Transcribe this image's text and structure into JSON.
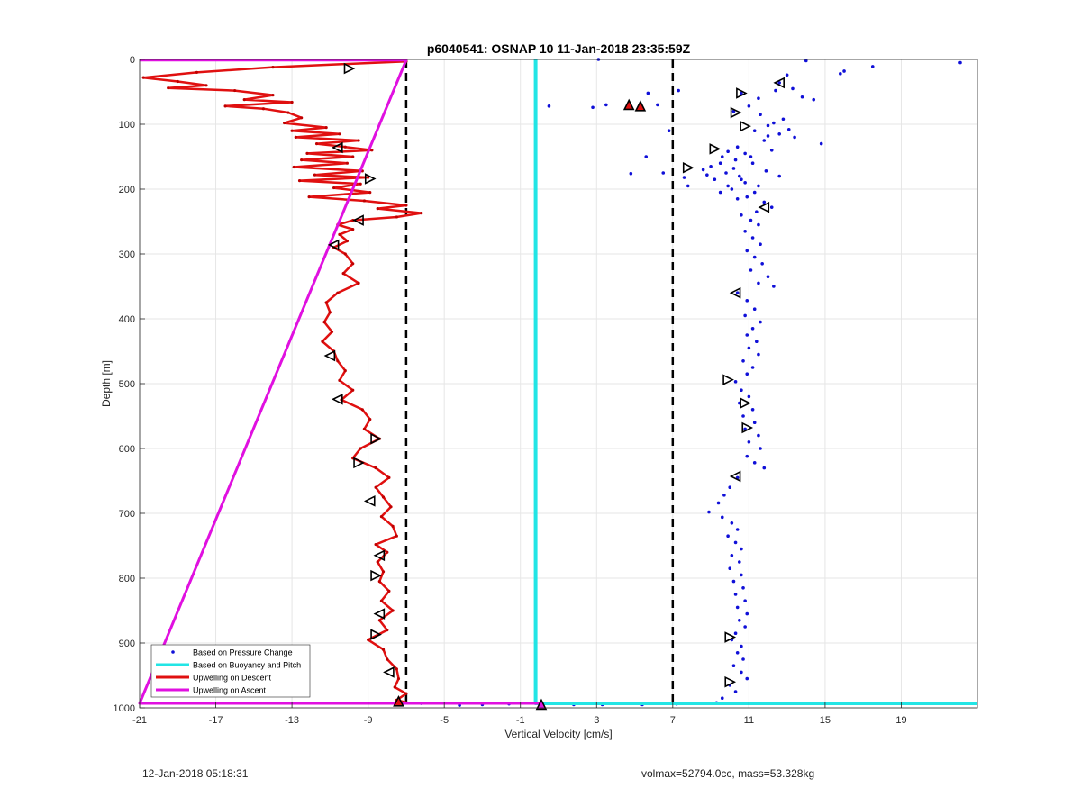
{
  "chart_data": {
    "type": "scatter",
    "title": "p6040541: OSNAP 10 11-Jan-2018 23:35:59Z",
    "xlabel": "Vertical Velocity [cm/s]",
    "ylabel": "Depth [m]",
    "xlim": [
      -21,
      23
    ],
    "ylim": [
      1000,
      0
    ],
    "y_reversed": true,
    "grid": true,
    "x_ticks": [
      "-21",
      "-17",
      "-13",
      "-9",
      "-5",
      "-1",
      "3",
      "7",
      "11",
      "15",
      "19"
    ],
    "y_ticks": [
      "0",
      "100",
      "200",
      "300",
      "400",
      "500",
      "600",
      "700",
      "800",
      "900",
      "1000"
    ],
    "legend_position": "bottom-left",
    "reference_lines": [
      {
        "x": -7,
        "style": "dashed",
        "color": "#000000"
      },
      {
        "x": 7,
        "style": "dashed",
        "color": "#000000"
      }
    ],
    "series": [
      {
        "name": "Based on Pressure Change",
        "kind": "points",
        "color": "#1010d8",
        "points": [
          [
            22.1,
            5
          ],
          [
            17.5,
            11
          ],
          [
            16.0,
            18
          ],
          [
            15.8,
            22
          ],
          [
            14.0,
            2
          ],
          [
            13.0,
            24
          ],
          [
            12.6,
            36
          ],
          [
            12.4,
            48
          ],
          [
            13.3,
            45
          ],
          [
            11.5,
            60
          ],
          [
            10.6,
            52
          ],
          [
            13.8,
            58
          ],
          [
            14.4,
            62
          ],
          [
            11.0,
            72
          ],
          [
            10.2,
            80
          ],
          [
            11.6,
            85
          ],
          [
            12.8,
            92
          ],
          [
            12.0,
            102
          ],
          [
            11.3,
            110
          ],
          [
            12.6,
            115
          ],
          [
            13.4,
            120
          ],
          [
            11.8,
            125
          ],
          [
            14.8,
            130
          ],
          [
            12.2,
            140
          ],
          [
            10.8,
            145
          ],
          [
            9.6,
            150
          ],
          [
            10.3,
            155
          ],
          [
            11.2,
            160
          ],
          [
            9.0,
            165
          ],
          [
            8.6,
            170
          ],
          [
            9.8,
            175
          ],
          [
            10.5,
            180
          ],
          [
            7.6,
            182
          ],
          [
            9.2,
            185
          ],
          [
            10.8,
            190
          ],
          [
            11.5,
            195
          ],
          [
            10.1,
            200
          ],
          [
            9.5,
            205
          ],
          [
            10.9,
            212
          ],
          [
            11.8,
            220
          ],
          [
            12.2,
            228
          ],
          [
            11.4,
            235
          ],
          [
            10.6,
            240
          ],
          [
            11.1,
            248
          ],
          [
            11.5,
            255
          ],
          [
            10.8,
            265
          ],
          [
            11.2,
            275
          ],
          [
            11.6,
            285
          ],
          [
            10.9,
            295
          ],
          [
            11.3,
            305
          ],
          [
            11.7,
            315
          ],
          [
            11.1,
            325
          ],
          [
            12.0,
            335
          ],
          [
            11.5,
            345
          ],
          [
            12.3,
            350
          ],
          [
            10.4,
            360
          ],
          [
            10.9,
            372
          ],
          [
            11.3,
            385
          ],
          [
            10.8,
            395
          ],
          [
            11.6,
            405
          ],
          [
            11.2,
            415
          ],
          [
            10.9,
            425
          ],
          [
            11.4,
            435
          ],
          [
            11.0,
            445
          ],
          [
            11.5,
            455
          ],
          [
            10.7,
            465
          ],
          [
            11.2,
            475
          ],
          [
            10.9,
            485
          ],
          [
            10.3,
            497
          ],
          [
            10.6,
            510
          ],
          [
            11.0,
            520
          ],
          [
            10.5,
            530
          ],
          [
            11.2,
            540
          ],
          [
            10.7,
            550
          ],
          [
            11.3,
            560
          ],
          [
            10.8,
            570
          ],
          [
            11.5,
            580
          ],
          [
            11.0,
            590
          ],
          [
            11.6,
            600
          ],
          [
            10.9,
            612
          ],
          [
            11.3,
            622
          ],
          [
            11.8,
            630
          ],
          [
            10.4,
            645
          ],
          [
            10.0,
            660
          ],
          [
            9.7,
            672
          ],
          [
            9.4,
            684
          ],
          [
            8.9,
            698
          ],
          [
            9.6,
            706
          ],
          [
            10.1,
            715
          ],
          [
            10.4,
            725
          ],
          [
            9.9,
            735
          ],
          [
            10.3,
            745
          ],
          [
            10.6,
            755
          ],
          [
            10.1,
            765
          ],
          [
            10.5,
            775
          ],
          [
            10.0,
            785
          ],
          [
            10.6,
            795
          ],
          [
            10.2,
            805
          ],
          [
            10.7,
            815
          ],
          [
            10.3,
            825
          ],
          [
            10.8,
            835
          ],
          [
            10.4,
            845
          ],
          [
            10.9,
            855
          ],
          [
            10.5,
            865
          ],
          [
            10.8,
            875
          ],
          [
            10.3,
            885
          ],
          [
            10.1,
            895
          ],
          [
            10.6,
            905
          ],
          [
            10.4,
            915
          ],
          [
            10.7,
            925
          ],
          [
            10.2,
            935
          ],
          [
            10.6,
            945
          ],
          [
            10.9,
            955
          ],
          [
            10.0,
            965
          ],
          [
            10.3,
            975
          ],
          [
            9.6,
            985
          ],
          [
            9.3,
            992
          ],
          [
            0.5,
            72
          ],
          [
            2.8,
            74
          ],
          [
            3.5,
            70
          ],
          [
            5.4,
            75
          ],
          [
            6.2,
            70
          ],
          [
            5.7,
            52
          ],
          [
            7.3,
            48
          ],
          [
            6.8,
            110
          ],
          [
            5.6,
            150
          ],
          [
            4.8,
            176
          ],
          [
            6.5,
            175
          ],
          [
            7.8,
            195
          ],
          [
            3.1,
            0
          ],
          [
            1.8,
            995
          ],
          [
            3.3,
            995
          ],
          [
            5.4,
            995
          ],
          [
            7.2,
            994
          ],
          [
            -4.2,
            996
          ],
          [
            -3.0,
            995
          ],
          [
            -1.6,
            994
          ],
          [
            -6.2,
            993
          ],
          [
            10.4,
            135
          ],
          [
            9.9,
            142
          ],
          [
            11.1,
            150
          ],
          [
            12.0,
            118
          ],
          [
            9.5,
            160
          ],
          [
            10.2,
            168
          ],
          [
            8.8,
            178
          ],
          [
            10.6,
            185
          ],
          [
            9.9,
            195
          ],
          [
            11.3,
            205
          ],
          [
            10.4,
            215
          ],
          [
            12.6,
            180
          ],
          [
            11.9,
            172
          ],
          [
            13.1,
            108
          ],
          [
            12.3,
            98
          ]
        ]
      },
      {
        "name": "Based on Buoyancy and Pitch",
        "kind": "line",
        "color": "#22e5e5",
        "points": [
          [
            -0.2,
            0
          ],
          [
            -0.2,
            993
          ],
          [
            23,
            993
          ]
        ]
      },
      {
        "name": "Upwelling on Descent",
        "kind": "line",
        "color": "#e01010",
        "points": [
          [
            -7,
            3
          ],
          [
            -14,
            12
          ],
          [
            -18,
            20
          ],
          [
            -20.8,
            28
          ],
          [
            -19,
            34
          ],
          [
            -17.5,
            40
          ],
          [
            -19.5,
            44
          ],
          [
            -16,
            48
          ],
          [
            -14,
            55
          ],
          [
            -15.5,
            62
          ],
          [
            -13,
            66
          ],
          [
            -16.5,
            72
          ],
          [
            -14.5,
            76
          ],
          [
            -13.2,
            82
          ],
          [
            -12.5,
            90
          ],
          [
            -13.4,
            98
          ],
          [
            -11.2,
            105
          ],
          [
            -13,
            110
          ],
          [
            -10.5,
            115
          ],
          [
            -12.8,
            120
          ],
          [
            -9.5,
            125
          ],
          [
            -11.7,
            130
          ],
          [
            -10.2,
            135
          ],
          [
            -8.8,
            140
          ],
          [
            -12.2,
            145
          ],
          [
            -9.8,
            150
          ],
          [
            -12.5,
            155
          ],
          [
            -10.1,
            160
          ],
          [
            -12.9,
            166
          ],
          [
            -9.3,
            172
          ],
          [
            -11.8,
            178
          ],
          [
            -9.0,
            182
          ],
          [
            -12.6,
            187
          ],
          [
            -9.4,
            192
          ],
          [
            -10.8,
            198
          ],
          [
            -8.9,
            205
          ],
          [
            -12.1,
            212
          ],
          [
            -9.2,
            218
          ],
          [
            -7.0,
            225
          ],
          [
            -8.5,
            230
          ],
          [
            -6.2,
            237
          ],
          [
            -7.5,
            243
          ],
          [
            -9.8,
            248
          ],
          [
            -10.6,
            255
          ],
          [
            -9.8,
            262
          ],
          [
            -10.5,
            270
          ],
          [
            -10.1,
            280
          ],
          [
            -10.8,
            290
          ],
          [
            -10.2,
            300
          ],
          [
            -9.8,
            315
          ],
          [
            -10.3,
            330
          ],
          [
            -9.5,
            345
          ],
          [
            -10.6,
            360
          ],
          [
            -11.2,
            375
          ],
          [
            -11.0,
            390
          ],
          [
            -11.3,
            405
          ],
          [
            -10.9,
            420
          ],
          [
            -11.4,
            435
          ],
          [
            -10.8,
            450
          ],
          [
            -10.6,
            465
          ],
          [
            -10.2,
            480
          ],
          [
            -10.5,
            495
          ],
          [
            -9.8,
            510
          ],
          [
            -10.4,
            525
          ],
          [
            -9.3,
            540
          ],
          [
            -8.9,
            555
          ],
          [
            -9.2,
            570
          ],
          [
            -8.4,
            585
          ],
          [
            -9.4,
            600
          ],
          [
            -9.8,
            615
          ],
          [
            -8.6,
            630
          ],
          [
            -7.9,
            645
          ],
          [
            -8.6,
            660
          ],
          [
            -8.2,
            675
          ],
          [
            -7.8,
            690
          ],
          [
            -8.3,
            705
          ],
          [
            -7.7,
            720
          ],
          [
            -7.5,
            735
          ],
          [
            -8.6,
            748
          ],
          [
            -8.0,
            760
          ],
          [
            -8.5,
            775
          ],
          [
            -8.2,
            790
          ],
          [
            -8.4,
            805
          ],
          [
            -7.9,
            820
          ],
          [
            -8.3,
            835
          ],
          [
            -7.7,
            850
          ],
          [
            -8.4,
            865
          ],
          [
            -8.0,
            880
          ],
          [
            -9.0,
            895
          ],
          [
            -8.2,
            910
          ],
          [
            -8.0,
            925
          ],
          [
            -7.5,
            940
          ],
          [
            -7.4,
            955
          ],
          [
            -7.6,
            968
          ],
          [
            -7.0,
            978
          ],
          [
            -7.5,
            988
          ],
          [
            -6.8,
            993
          ]
        ]
      },
      {
        "name": "Upwelling on Ascent",
        "kind": "line",
        "color": "#e010e0",
        "points": [
          [
            -21,
            1
          ],
          [
            -7,
            1
          ],
          [
            -21,
            993
          ],
          [
            0,
            993
          ],
          [
            0,
            995
          ]
        ]
      }
    ],
    "markers": [
      {
        "x": -10.0,
        "y": 14,
        "dir": "right"
      },
      {
        "x": -10.6,
        "y": 136,
        "dir": "left"
      },
      {
        "x": -8.9,
        "y": 184,
        "dir": "right"
      },
      {
        "x": -9.5,
        "y": 248,
        "dir": "left"
      },
      {
        "x": -10.8,
        "y": 286,
        "dir": "left"
      },
      {
        "x": -11.0,
        "y": 457,
        "dir": "left"
      },
      {
        "x": -10.6,
        "y": 524,
        "dir": "left"
      },
      {
        "x": -8.6,
        "y": 585,
        "dir": "right"
      },
      {
        "x": -9.5,
        "y": 622,
        "dir": "right"
      },
      {
        "x": -8.9,
        "y": 681,
        "dir": "left"
      },
      {
        "x": -8.4,
        "y": 765,
        "dir": "left"
      },
      {
        "x": -8.6,
        "y": 796,
        "dir": "right"
      },
      {
        "x": -8.4,
        "y": 855,
        "dir": "left"
      },
      {
        "x": -8.6,
        "y": 887,
        "dir": "right"
      },
      {
        "x": -7.9,
        "y": 945,
        "dir": "left"
      },
      {
        "x": 12.6,
        "y": 36,
        "dir": "left"
      },
      {
        "x": 10.6,
        "y": 52,
        "dir": "right"
      },
      {
        "x": 10.3,
        "y": 82,
        "dir": "right"
      },
      {
        "x": 10.8,
        "y": 103,
        "dir": "right"
      },
      {
        "x": 9.2,
        "y": 138,
        "dir": "right"
      },
      {
        "x": 7.8,
        "y": 167,
        "dir": "right"
      },
      {
        "x": 11.8,
        "y": 228,
        "dir": "left"
      },
      {
        "x": 10.3,
        "y": 360,
        "dir": "left"
      },
      {
        "x": 9.9,
        "y": 494,
        "dir": "right"
      },
      {
        "x": 10.8,
        "y": 530,
        "dir": "right"
      },
      {
        "x": 10.9,
        "y": 568,
        "dir": "right"
      },
      {
        "x": 10.3,
        "y": 643,
        "dir": "left"
      },
      {
        "x": 10.0,
        "y": 891,
        "dir": "right"
      },
      {
        "x": 10.0,
        "y": 960,
        "dir": "right"
      },
      {
        "x": 4.7,
        "y": 70,
        "dir": "up",
        "fill": "#e01010"
      },
      {
        "x": 5.3,
        "y": 72,
        "dir": "up",
        "fill": "#e01010"
      },
      {
        "x": -7.4,
        "y": 990,
        "dir": "up",
        "fill": "#e01010"
      },
      {
        "x": 0.1,
        "y": 995,
        "dir": "up",
        "fill": "#e010e0"
      }
    ]
  },
  "footer": {
    "timestamp": "12-Jan-2018 05:18:31",
    "summary": "volmax=52794.0cc, mass=53.328kg"
  }
}
